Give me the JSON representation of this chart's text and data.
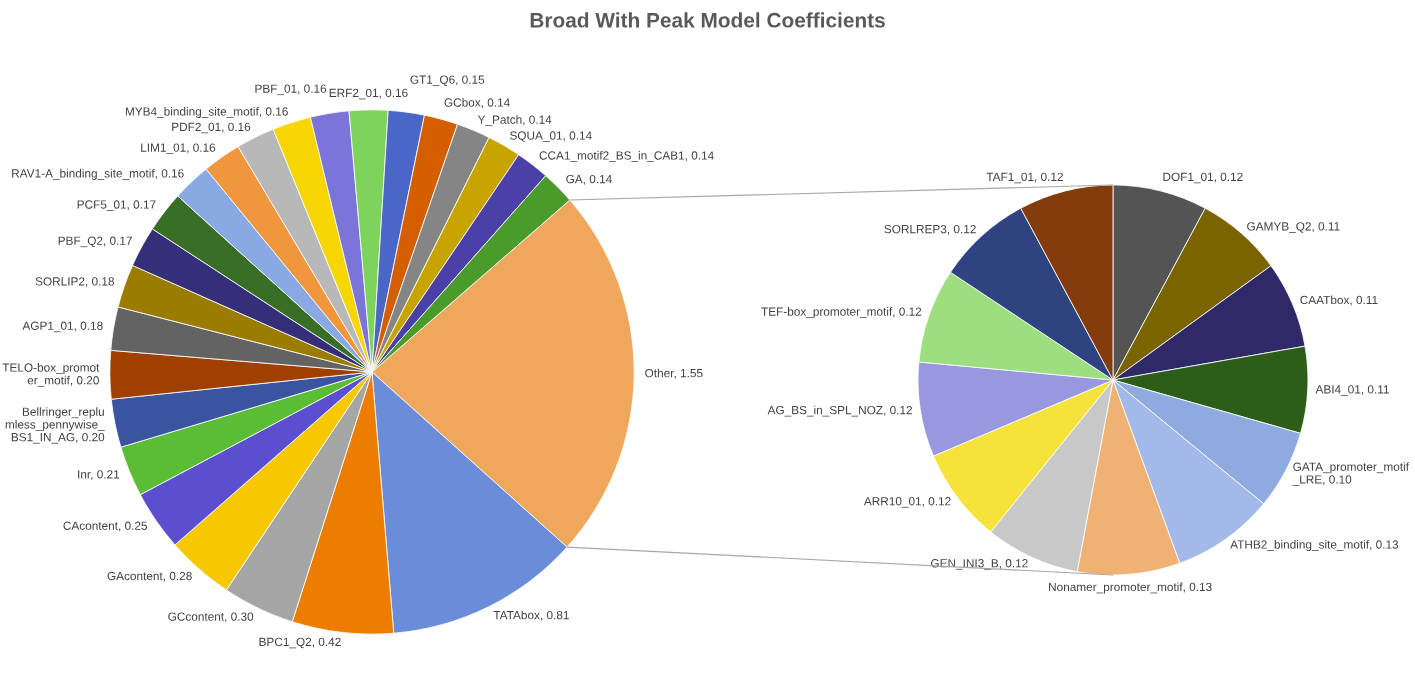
{
  "chart_data": [
    {
      "type": "pie",
      "title": "Broad With Peak Model Coefficients",
      "categories": [
        "Other, 1.55",
        "TATAbox, 0.81",
        "BPC1_Q2, 0.42",
        "GCcontent, 0.30",
        "GAcontent, 0.28",
        "CAcontent, 0.25",
        "Inr, 0.21",
        "Bellringer_replumless_pennywise_BS1_IN_AG, 0.20",
        "TELO-box_promoter_motif, 0.20",
        "AGP1_01, 0.18",
        "SORLIP2, 0.18",
        "PBF_Q2, 0.17",
        "PCF5_01, 0.17",
        "RAV1-A_binding_site_motif, 0.16",
        "LIM1_01, 0.16",
        "PDF2_01, 0.16",
        "MYB4_binding_site_motif, 0.16",
        "PBF_01, 0.16",
        "ERF2_01, 0.16",
        "GT1_Q6, 0.15",
        "GCbox, 0.14",
        "Y_Patch, 0.14",
        "SQUA_01, 0.14",
        "CCA1_motif2_BS_in_CAB1, 0.14",
        "GA, 0.14"
      ],
      "values": [
        1.55,
        0.81,
        0.42,
        0.3,
        0.28,
        0.25,
        0.21,
        0.2,
        0.2,
        0.18,
        0.18,
        0.17,
        0.17,
        0.16,
        0.16,
        0.16,
        0.16,
        0.16,
        0.16,
        0.15,
        0.14,
        0.14,
        0.14,
        0.14,
        0.14
      ],
      "colors": [
        "#efa75b",
        "#6b8dd9",
        "#ed7d00",
        "#a5a5a5",
        "#f7c800",
        "#5b4fcf",
        "#5bbc35",
        "#3a54a0",
        "#a04000",
        "#636363",
        "#9a7d00",
        "#352e78",
        "#386e26",
        "#8aa8e4",
        "#f0963c",
        "#b8b8b8",
        "#f7d500",
        "#7b74d9",
        "#7ed35a",
        "#4a67c8",
        "#d45e00",
        "#858585",
        "#c8a400",
        "#4b3fa8",
        "#4a9a2c"
      ]
    },
    {
      "type": "pie",
      "categories": [
        "DOF1_01, 0.12",
        "GAMYB_Q2, 0.11",
        "CAATbox, 0.11",
        "ABI4_01, 0.11",
        "GATA_promoter_motif_LRE, 0.10",
        "ATHB2_binding_site_motif, 0.13",
        "Nonamer_promoter_motif, 0.13",
        "GEN_INI3_B, 0.12",
        "ARR10_01, 0.12",
        "AG_BS_in_SPL_NOZ, 0.12",
        "TEF-box_promoter_motif, 0.12",
        "SORLREP3, 0.12",
        "TAF1_01, 0.12"
      ],
      "values": [
        0.12,
        0.11,
        0.11,
        0.11,
        0.1,
        0.13,
        0.13,
        0.12,
        0.12,
        0.12,
        0.12,
        0.12,
        0.12
      ],
      "colors": [
        "#545454",
        "#7a6400",
        "#302967",
        "#2c5e1a",
        "#8eaadf",
        "#a2b9ea",
        "#f0b274",
        "#c8c8c8",
        "#f5e23a",
        "#9898e0",
        "#9cde80",
        "#2f4380",
        "#843c0c"
      ]
    }
  ]
}
